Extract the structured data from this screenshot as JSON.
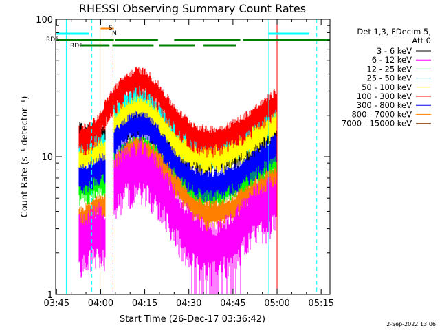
{
  "chart_data": {
    "type": "line",
    "title": "RHESSI Observing Summary Count Rates",
    "xlabel": "Start Time (26-Dec-17 03:36:42)",
    "ylabel": "Count Rate (s⁻¹ detector⁻¹)",
    "yscale": "log",
    "ylim": [
      1,
      100
    ],
    "xlim_minutes": [
      224.7,
      318.0
    ],
    "x_ticks": [
      {
        "label": "03:45",
        "minute": 225
      },
      {
        "label": "04:00",
        "minute": 240
      },
      {
        "label": "04:15",
        "minute": 255
      },
      {
        "label": "04:30",
        "minute": 270
      },
      {
        "label": "04:45",
        "minute": 285
      },
      {
        "label": "05:00",
        "minute": 300
      },
      {
        "label": "05:15",
        "minute": 315
      }
    ],
    "y_ticks": [
      {
        "label": "1",
        "value": 1
      },
      {
        "label": "10",
        "value": 10
      },
      {
        "label": "100",
        "value": 100
      }
    ],
    "legend_header": [
      "Det 1,3, FDecim 5,",
      "Att 0"
    ],
    "series": [
      {
        "name": "3 - 6 keV",
        "color": "#000000",
        "points": [
          [
            232.5,
            14.5
          ],
          [
            236,
            14
          ],
          [
            239.5,
            15
          ],
          [
            241.5,
            13.5
          ],
          [
            244.5,
            16
          ],
          [
            248.5,
            17.5
          ],
          [
            252.5,
            18
          ],
          [
            256,
            17
          ],
          [
            260,
            14.5
          ],
          [
            264,
            12
          ],
          [
            268,
            10.5
          ],
          [
            272,
            9.8
          ],
          [
            276,
            9.6
          ],
          [
            280,
            9.8
          ],
          [
            284,
            10.4
          ],
          [
            288,
            11.2
          ],
          [
            292,
            12.5
          ],
          [
            296,
            14.5
          ],
          [
            300,
            16
          ]
        ]
      },
      {
        "name": "6 - 12 keV",
        "color": "#ff00ff",
        "points": [
          [
            232.5,
            2.5
          ],
          [
            236,
            2.7
          ],
          [
            239.5,
            3
          ],
          [
            241.5,
            2.8
          ],
          [
            244.5,
            6.5
          ],
          [
            248.5,
            8
          ],
          [
            252.5,
            8.5
          ],
          [
            256,
            8
          ],
          [
            260,
            6.5
          ],
          [
            264,
            4.5
          ],
          [
            268,
            3.3
          ],
          [
            272,
            2.6
          ],
          [
            276,
            2.2
          ],
          [
            280,
            2.2
          ],
          [
            284,
            2.6
          ],
          [
            288,
            3.2
          ],
          [
            292,
            4
          ],
          [
            296,
            4.5
          ],
          [
            300,
            5
          ]
        ]
      },
      {
        "name": "12 - 25 keV",
        "color": "#00ff00",
        "points": [
          [
            232.5,
            6
          ],
          [
            236,
            6.2
          ],
          [
            239.5,
            6.8
          ],
          [
            241.5,
            6.5
          ],
          [
            244.5,
            9
          ],
          [
            248.5,
            11
          ],
          [
            252.5,
            12
          ],
          [
            256,
            11.5
          ],
          [
            260,
            9.5
          ],
          [
            264,
            7.5
          ],
          [
            268,
            6.3
          ],
          [
            272,
            5.6
          ],
          [
            276,
            5.4
          ],
          [
            280,
            5.6
          ],
          [
            284,
            6
          ],
          [
            288,
            6.6
          ],
          [
            292,
            7.5
          ],
          [
            296,
            8.5
          ],
          [
            300,
            9.5
          ]
        ]
      },
      {
        "name": "25 - 50 keV",
        "color": "#00ffff",
        "points": [
          [
            232.5,
            10.5
          ],
          [
            236,
            11
          ],
          [
            239.5,
            12.5
          ],
          [
            241.5,
            12
          ],
          [
            244.5,
            20
          ],
          [
            248.5,
            25
          ],
          [
            252.5,
            27
          ],
          [
            256,
            26
          ],
          [
            260,
            21
          ],
          [
            264,
            16
          ],
          [
            268,
            13
          ],
          [
            272,
            11.5
          ],
          [
            276,
            11
          ],
          [
            280,
            11.3
          ],
          [
            284,
            12
          ],
          [
            288,
            13.5
          ],
          [
            292,
            15.5
          ],
          [
            296,
            18
          ],
          [
            300,
            21
          ]
        ]
      },
      {
        "name": "50 - 100 keV",
        "color": "#ffff00",
        "points": [
          [
            232.5,
            9.5
          ],
          [
            236,
            10
          ],
          [
            239.5,
            11
          ],
          [
            241.5,
            10.8
          ],
          [
            244.5,
            17
          ],
          [
            248.5,
            21
          ],
          [
            252.5,
            23
          ],
          [
            256,
            22
          ],
          [
            260,
            18
          ],
          [
            264,
            14
          ],
          [
            268,
            11.5
          ],
          [
            272,
            10.3
          ],
          [
            276,
            10
          ],
          [
            280,
            10.2
          ],
          [
            284,
            10.8
          ],
          [
            288,
            12
          ],
          [
            292,
            13.8
          ],
          [
            296,
            16
          ],
          [
            300,
            18
          ]
        ]
      },
      {
        "name": "100 - 300 keV",
        "color": "#ff0000",
        "points": [
          [
            232.5,
            13.5
          ],
          [
            236,
            14.5
          ],
          [
            239.5,
            17
          ],
          [
            241.5,
            21
          ],
          [
            244.5,
            27
          ],
          [
            248.5,
            33
          ],
          [
            252.5,
            37
          ],
          [
            256,
            35
          ],
          [
            260,
            28
          ],
          [
            264,
            21
          ],
          [
            268,
            17
          ],
          [
            272,
            14.5
          ],
          [
            276,
            13.5
          ],
          [
            280,
            13.8
          ],
          [
            284,
            14.8
          ],
          [
            288,
            16.5
          ],
          [
            292,
            19
          ],
          [
            296,
            22
          ],
          [
            300,
            26
          ]
        ]
      },
      {
        "name": "300 - 800 keV",
        "color": "#0000ff",
        "points": [
          [
            232.5,
            7
          ],
          [
            236,
            7.5
          ],
          [
            239.5,
            8.5
          ],
          [
            241.5,
            8.5
          ],
          [
            244.5,
            13
          ],
          [
            248.5,
            16
          ],
          [
            252.5,
            17.5
          ],
          [
            256,
            16.5
          ],
          [
            260,
            13.5
          ],
          [
            264,
            10
          ],
          [
            268,
            8
          ],
          [
            272,
            6.8
          ],
          [
            276,
            6.4
          ],
          [
            280,
            6.5
          ],
          [
            284,
            7
          ],
          [
            288,
            7.8
          ],
          [
            292,
            9
          ],
          [
            296,
            10.5
          ],
          [
            300,
            12
          ]
        ]
      },
      {
        "name": "800 - 7000 keV",
        "color": "#ff8000",
        "points": [
          [
            232.5,
            3.5
          ],
          [
            236,
            3.8
          ],
          [
            239.5,
            4.5
          ],
          [
            241.5,
            4.5
          ],
          [
            244.5,
            8.5
          ],
          [
            248.5,
            10.5
          ],
          [
            252.5,
            11.5
          ],
          [
            256,
            11
          ],
          [
            260,
            9
          ],
          [
            264,
            6.8
          ],
          [
            268,
            5.3
          ],
          [
            272,
            4.3
          ],
          [
            276,
            3.9
          ],
          [
            280,
            3.9
          ],
          [
            284,
            4.2
          ],
          [
            288,
            4.8
          ],
          [
            292,
            5.6
          ],
          [
            296,
            6.3
          ],
          [
            300,
            7
          ]
        ]
      },
      {
        "name": "7000 - 15000 keV",
        "color": "#8b4513",
        "points": []
      }
    ],
    "flags": [
      {
        "name": "SAA",
        "label": "S",
        "color": "#ff8000",
        "segments": [
          [
            240,
            244.5
          ]
        ]
      },
      {
        "name": "Night",
        "label": "N",
        "color": "#00ffff",
        "segments": [
          [
            225,
            236
          ],
          [
            297,
            311
          ]
        ]
      },
      {
        "name": "Decimation",
        "label": "RD6",
        "color": "#008000",
        "segments": [
          [
            225,
            244.5
          ],
          [
            245,
            259.5
          ],
          [
            265,
            287.5
          ],
          [
            288.5,
            318
          ]
        ]
      },
      {
        "name": "Rate-decimation",
        "label": "RD6",
        "color": "#008000",
        "segments": [
          [
            233,
            243
          ],
          [
            244,
            258
          ],
          [
            260,
            272
          ],
          [
            275,
            286
          ]
        ]
      }
    ],
    "vertical_lines": [
      {
        "minute": 228.3,
        "color": "#00ffff",
        "style": "solid"
      },
      {
        "minute": 237.0,
        "color": "#00ffff",
        "style": "dashed"
      },
      {
        "minute": 239.8,
        "color": "#ff8000",
        "style": "solid"
      },
      {
        "minute": 244.2,
        "color": "#ff8000",
        "style": "dashed"
      },
      {
        "minute": 297.2,
        "color": "#00ffff",
        "style": "solid"
      },
      {
        "minute": 300.0,
        "color": "#ff0000",
        "style": "solid"
      },
      {
        "minute": 313.5,
        "color": "#00ffff",
        "style": "dashed"
      }
    ],
    "date_stamp": "2-Sep-2022 13:06"
  }
}
